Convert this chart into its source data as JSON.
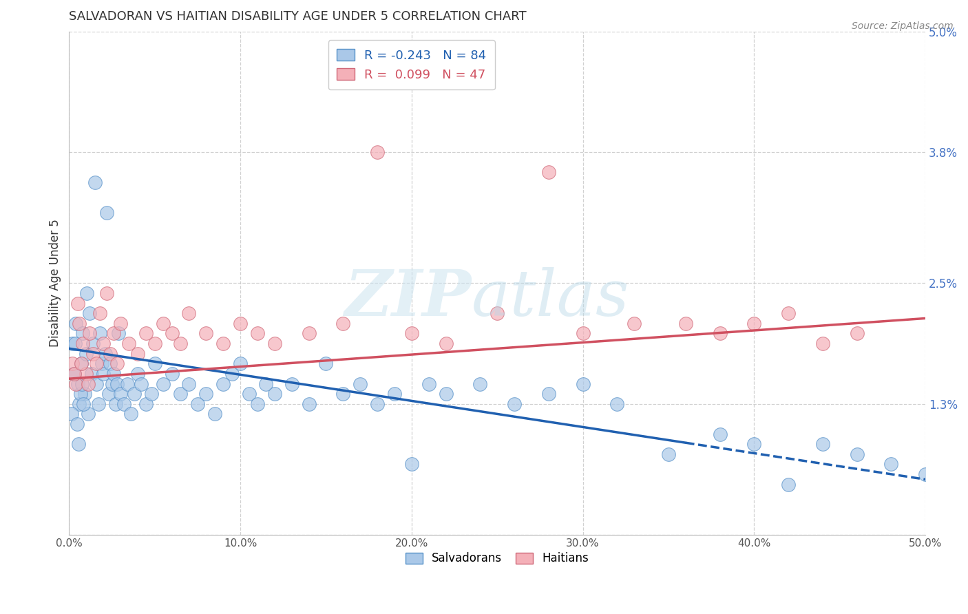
{
  "title": "SALVADORAN VS HAITIAN DISABILITY AGE UNDER 5 CORRELATION CHART",
  "source": "Source: ZipAtlas.com",
  "ylabel": "Disability Age Under 5",
  "xlim": [
    0,
    50
  ],
  "ylim": [
    0,
    5.0
  ],
  "ytick_vals": [
    0,
    1.3,
    2.5,
    3.8,
    5.0
  ],
  "ytick_labels": [
    "",
    "1.3%",
    "2.5%",
    "3.8%",
    "5.0%"
  ],
  "xtick_vals": [
    0,
    10,
    20,
    30,
    40,
    50
  ],
  "xtick_labels": [
    "0.0%",
    "10.0%",
    "20.0%",
    "30.0%",
    "40.0%",
    "50.0%"
  ],
  "blue_R": -0.243,
  "blue_N": 84,
  "pink_R": 0.099,
  "pink_N": 47,
  "blue_face": "#aac8e8",
  "blue_edge": "#5590c8",
  "pink_face": "#f4b0b8",
  "pink_edge": "#d06878",
  "blue_line": "#2060b0",
  "pink_line": "#d05060",
  "legend_blue": "Salvadorans",
  "legend_pink": "Haitians",
  "blue_line_y0": 1.85,
  "blue_line_y50": 0.55,
  "blue_solid_end": 36,
  "pink_line_y0": 1.55,
  "pink_line_y50": 2.15,
  "blue_x": [
    0.2,
    0.3,
    0.4,
    0.5,
    0.6,
    0.7,
    0.8,
    0.9,
    1.0,
    1.1,
    1.2,
    1.3,
    1.4,
    1.5,
    1.6,
    1.7,
    1.8,
    1.9,
    2.0,
    2.1,
    2.2,
    2.3,
    2.4,
    2.5,
    2.6,
    2.7,
    2.8,
    2.9,
    3.0,
    3.2,
    3.4,
    3.6,
    3.8,
    4.0,
    4.2,
    4.5,
    4.8,
    5.0,
    5.5,
    6.0,
    6.5,
    7.0,
    7.5,
    8.0,
    8.5,
    9.0,
    9.5,
    10.0,
    10.5,
    11.0,
    11.5,
    12.0,
    13.0,
    14.0,
    15.0,
    16.0,
    17.0,
    18.0,
    19.0,
    20.0,
    21.0,
    22.0,
    24.0,
    26.0,
    28.0,
    30.0,
    32.0,
    35.0,
    38.0,
    40.0,
    42.0,
    44.0,
    46.0,
    48.0,
    50.0,
    0.15,
    0.25,
    0.35,
    0.45,
    0.55,
    0.65,
    0.75,
    0.85,
    1.05
  ],
  "blue_y": [
    1.9,
    1.6,
    2.1,
    1.5,
    1.3,
    1.7,
    2.0,
    1.4,
    1.8,
    1.2,
    2.2,
    1.6,
    1.9,
    3.5,
    1.5,
    1.3,
    2.0,
    1.7,
    1.6,
    1.8,
    3.2,
    1.4,
    1.7,
    1.5,
    1.6,
    1.3,
    1.5,
    2.0,
    1.4,
    1.3,
    1.5,
    1.2,
    1.4,
    1.6,
    1.5,
    1.3,
    1.4,
    1.7,
    1.5,
    1.6,
    1.4,
    1.5,
    1.3,
    1.4,
    1.2,
    1.5,
    1.6,
    1.7,
    1.4,
    1.3,
    1.5,
    1.4,
    1.5,
    1.3,
    1.7,
    1.4,
    1.5,
    1.3,
    1.4,
    0.7,
    1.5,
    1.4,
    1.5,
    1.3,
    1.4,
    1.5,
    1.3,
    0.8,
    1.0,
    0.9,
    0.5,
    0.9,
    0.8,
    0.7,
    0.6,
    1.2,
    1.6,
    1.9,
    1.1,
    0.9,
    1.4,
    1.5,
    1.3,
    2.4
  ],
  "pink_x": [
    0.2,
    0.4,
    0.6,
    0.8,
    1.0,
    1.2,
    1.4,
    1.6,
    1.8,
    2.0,
    2.2,
    2.4,
    2.6,
    2.8,
    3.0,
    3.5,
    4.0,
    4.5,
    5.0,
    5.5,
    6.0,
    6.5,
    7.0,
    8.0,
    9.0,
    10.0,
    11.0,
    12.0,
    14.0,
    16.0,
    18.0,
    20.0,
    22.0,
    25.0,
    28.0,
    30.0,
    33.0,
    36.0,
    38.0,
    40.0,
    42.0,
    44.0,
    46.0,
    0.3,
    0.5,
    0.7,
    1.1
  ],
  "pink_y": [
    1.7,
    1.5,
    2.1,
    1.9,
    1.6,
    2.0,
    1.8,
    1.7,
    2.2,
    1.9,
    2.4,
    1.8,
    2.0,
    1.7,
    2.1,
    1.9,
    1.8,
    2.0,
    1.9,
    2.1,
    2.0,
    1.9,
    2.2,
    2.0,
    1.9,
    2.1,
    2.0,
    1.9,
    2.0,
    2.1,
    3.8,
    2.0,
    1.9,
    2.2,
    3.6,
    2.0,
    2.1,
    2.1,
    2.0,
    2.1,
    2.2,
    1.9,
    2.0,
    1.6,
    2.3,
    1.7,
    1.5
  ]
}
